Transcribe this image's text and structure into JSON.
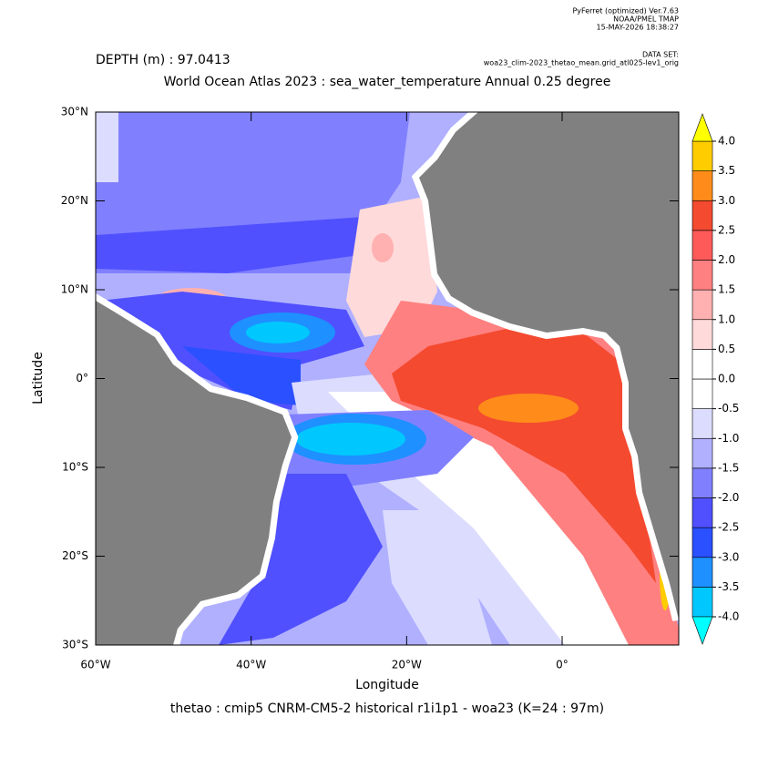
{
  "chart_data": {
    "type": "heatmap",
    "header": [
      "PyFerret (optimized) Ver.7.63",
      "NOAA/PMEL TMAP",
      "15-MAY-2026 18:38:27"
    ],
    "dataset_label": "DATA SET:",
    "dataset": "woa23_clim-2023_thetao_mean.grid_atl025-lev1_orig",
    "depth": "DEPTH (m) : 97.0413",
    "title": "World Ocean Atlas 2023 : sea_water_temperature Annual  0.25 degree",
    "xlabel": "Longitude",
    "ylabel": "Latitude",
    "caption": "thetao : cmip5 CNRM-CM5-2 historical r1i1p1 - woa23  (K=24 : 97m)",
    "xlim": [
      -60,
      15
    ],
    "ylim": [
      -30,
      30
    ],
    "xticks": [
      {
        "value": -60,
        "label": "60°W"
      },
      {
        "value": -40,
        "label": "40°W"
      },
      {
        "value": -20,
        "label": "20°W"
      },
      {
        "value": 0,
        "label": "0°"
      }
    ],
    "yticks": [
      {
        "value": 30,
        "label": "30°N"
      },
      {
        "value": 20,
        "label": "20°N"
      },
      {
        "value": 10,
        "label": "10°N"
      },
      {
        "value": 0,
        "label": "0°"
      },
      {
        "value": -10,
        "label": "10°S"
      },
      {
        "value": -20,
        "label": "20°S"
      },
      {
        "value": -30,
        "label": "30°S"
      }
    ],
    "land_color": "#808080",
    "colorbar": {
      "levels": [
        {
          "value": -4,
          "label": "-4.0"
        },
        -3.5,
        {
          "value": -3,
          "label": "-3.0"
        },
        -2.5,
        {
          "value": -2,
          "label": "-2.0"
        },
        -1.5,
        {
          "value": -1,
          "label": "-1.0"
        },
        -0.5,
        {
          "value": 0,
          "label": "0.0"
        },
        0.5,
        {
          "value": 1,
          "label": "1.0"
        },
        1.5,
        {
          "value": 2,
          "label": "2.0"
        },
        2.5,
        {
          "value": 3,
          "label": "3.0"
        },
        3.5,
        {
          "value": 4,
          "label": "4.0"
        }
      ],
      "colors": [
        "#00c8ff",
        "#1e90ff",
        "#2a50ff",
        "#5050ff",
        "#8080ff",
        "#b0b0ff",
        "#dcdcff",
        "#ffffff",
        "#ffffff",
        "#ffdada",
        "#ffb0b0",
        "#ff8080",
        "#ff5a5a",
        "#f44a30",
        "#ff8c1a",
        "#ffcc00"
      ],
      "under_color": "#00ffff",
      "over_color": "#ffff00"
    }
  }
}
